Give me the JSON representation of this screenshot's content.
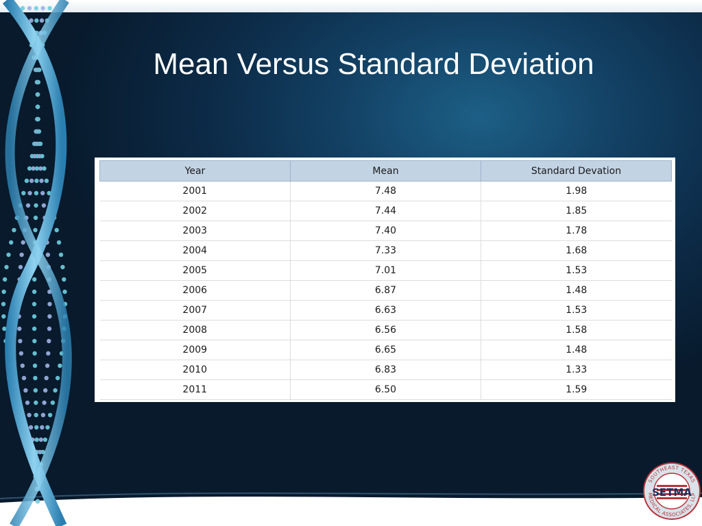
{
  "slide": {
    "title": "Mean Versus Standard Deviation"
  },
  "table": {
    "headers": [
      "Year",
      "Mean",
      "Standard Devation"
    ],
    "rows": [
      [
        "2001",
        "7.48",
        "1.98"
      ],
      [
        "2002",
        "7.44",
        "1.85"
      ],
      [
        "2003",
        "7.40",
        "1.78"
      ],
      [
        "2004",
        "7.33",
        "1.68"
      ],
      [
        "2005",
        "7.01",
        "1.53"
      ],
      [
        "2006",
        "6.87",
        "1.48"
      ],
      [
        "2007",
        "6.63",
        "1.53"
      ],
      [
        "2008",
        "6.56",
        "1.58"
      ],
      [
        "2009",
        "6.65",
        "1.48"
      ],
      [
        "2010",
        "6.83",
        "1.33"
      ],
      [
        "2011",
        "6.50",
        "1.59"
      ]
    ]
  },
  "logo": {
    "text": "SOUTHEAST TEXAS MEDICAL ASSOCIATES, LLP",
    "abbr": "SETMA"
  },
  "colors": {
    "background": "#0c2a46",
    "header_fill": "#c2d3e4",
    "helix": "#4ea6d2",
    "logo_red": "#b8333a"
  }
}
